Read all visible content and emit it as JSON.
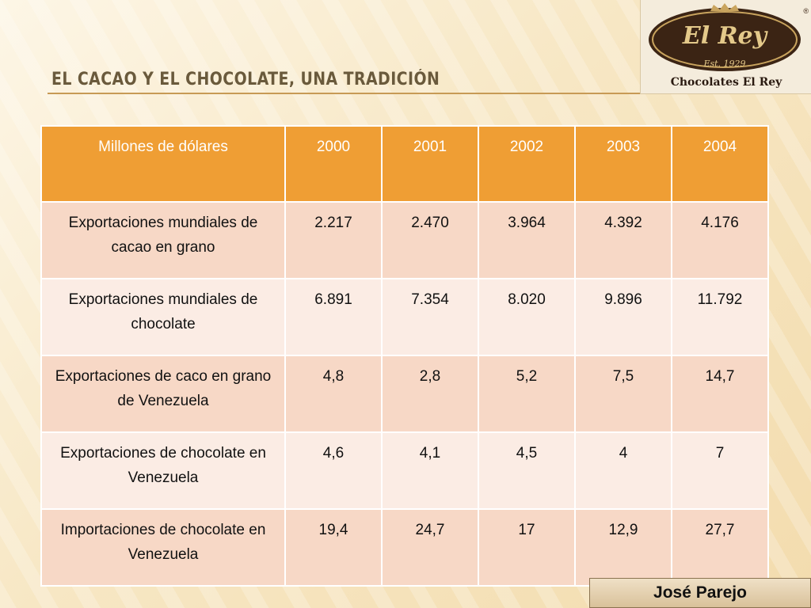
{
  "slide": {
    "title": "EL CACAO Y EL CHOCOLATE, UNA TRADICIÓN",
    "author": "José Parejo"
  },
  "logo": {
    "script_text": "El Rey",
    "established": "Est. 1929",
    "brand": "Chocolates El Rey",
    "registered_mark": "®"
  },
  "table": {
    "header": [
      "Millones  de dólares",
      "2000",
      "2001",
      "2002",
      "2003",
      "2004"
    ],
    "rows": [
      [
        "Exportaciones mundiales de cacao en grano",
        "2.217",
        "2.470",
        "3.964",
        "4.392",
        "4.176"
      ],
      [
        "Exportaciones mundiales de chocolate",
        "6.891",
        "7.354",
        "8.020",
        "9.896",
        "11.792"
      ],
      [
        "Exportaciones de caco en grano de Venezuela",
        "4,8",
        "2,8",
        "5,2",
        "7,5",
        "14,7"
      ],
      [
        "Exportaciones de chocolate en Venezuela",
        "4,6",
        "4,1",
        "4,5",
        "4",
        "7"
      ],
      [
        "Importaciones de chocolate en Venezuela",
        "19,4",
        "24,7",
        "17",
        "12,9",
        "27,7"
      ]
    ]
  },
  "colors": {
    "header_bg": "#ef9e34",
    "row_odd": "#f7d8c6",
    "row_even": "#fbece4",
    "title_text": "#6a5a3c"
  }
}
